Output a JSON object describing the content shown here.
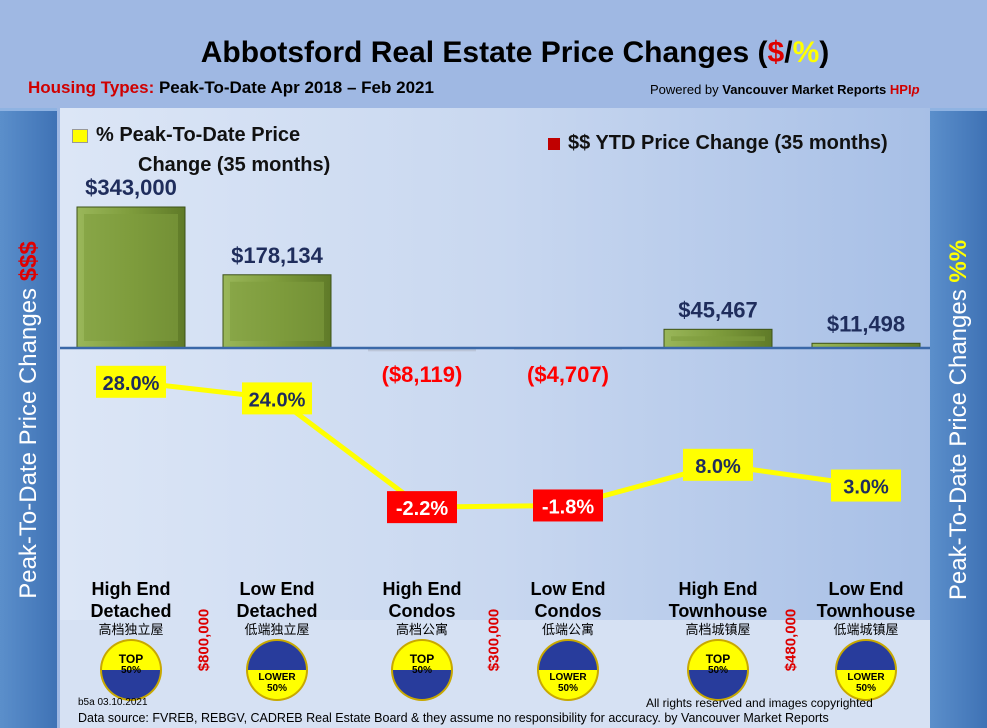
{
  "header": {
    "title_main": "Abbotsford Real Estate Price Changes (",
    "title_dollar": "$",
    "title_slash": "/",
    "title_pct": "%",
    "title_close": ")",
    "subtitle_label": "Housing Types:",
    "subtitle_text": " Peak-To-Date Apr 2018 – Feb 2021",
    "powered_prefix": "Powered by ",
    "powered_brand": "Vancouver Market Reports ",
    "powered_hpi": "HPI",
    "powered_p": "p"
  },
  "side": {
    "left_text": "Peak-To-Date Price Changes ",
    "left_accent": "$$$",
    "right_text": "Peak-To-Date  Price  Changes ",
    "right_accent": "%%"
  },
  "colors": {
    "bar": "#7d9a3a",
    "line": "#ffff00",
    "negative": "#ff0000",
    "accent_red": "#d00000",
    "value_text": "#1f2d5c",
    "side": "#4a7fc0"
  },
  "chart_data": {
    "type": "bar+line",
    "categories": [
      "High End Detached",
      "Low End Detached",
      "High End Condos",
      "Low End Condos",
      "High End Townhouse",
      "Low End Townhouse"
    ],
    "categories_cn": [
      "高档独立屋",
      "低端独立屋",
      "高档公寓",
      "低端公寓",
      "高档城镇屋",
      "低端城镇屋"
    ],
    "series": [
      {
        "name": "$$ YTD Price Change (35 months)",
        "type": "bar",
        "values": [
          343000,
          178134,
          -8119,
          -4707,
          45467,
          11498
        ],
        "labels": [
          "$343,000",
          "$178,134",
          "($8,119)",
          "($4,707)",
          "$45,467",
          "$11,498"
        ]
      },
      {
        "name": "% Peak-To-Date Price Change (35 months)",
        "type": "line",
        "values": [
          28.0,
          24.0,
          -2.2,
          -1.8,
          8.0,
          3.0
        ],
        "labels": [
          "28.0%",
          "24.0%",
          "-2.2%",
          "-1.8%",
          "8.0%",
          "3.0%"
        ]
      }
    ],
    "legend": {
      "line_line1": "% Peak-To-Date Price",
      "line_line2": "Change (35 months)",
      "bar": "$$ YTD Price Change (35 months)"
    }
  },
  "tiers": [
    "TOP",
    "50%",
    "LOWER",
    "50%"
  ],
  "tier_badges": [
    "top",
    "lower",
    "top",
    "lower",
    "top",
    "lower"
  ],
  "thresholds": [
    "$800,000",
    "$300,000",
    "$480,000"
  ],
  "footer": {
    "version": "b5a 03.10.2021",
    "rights": "All rights reserved and  images copyrighted",
    "source": "Data source: FVREB, REBGV, CADREB Real Estate Board & they assume no responsibility for accuracy. by Vancouver Market Reports"
  }
}
